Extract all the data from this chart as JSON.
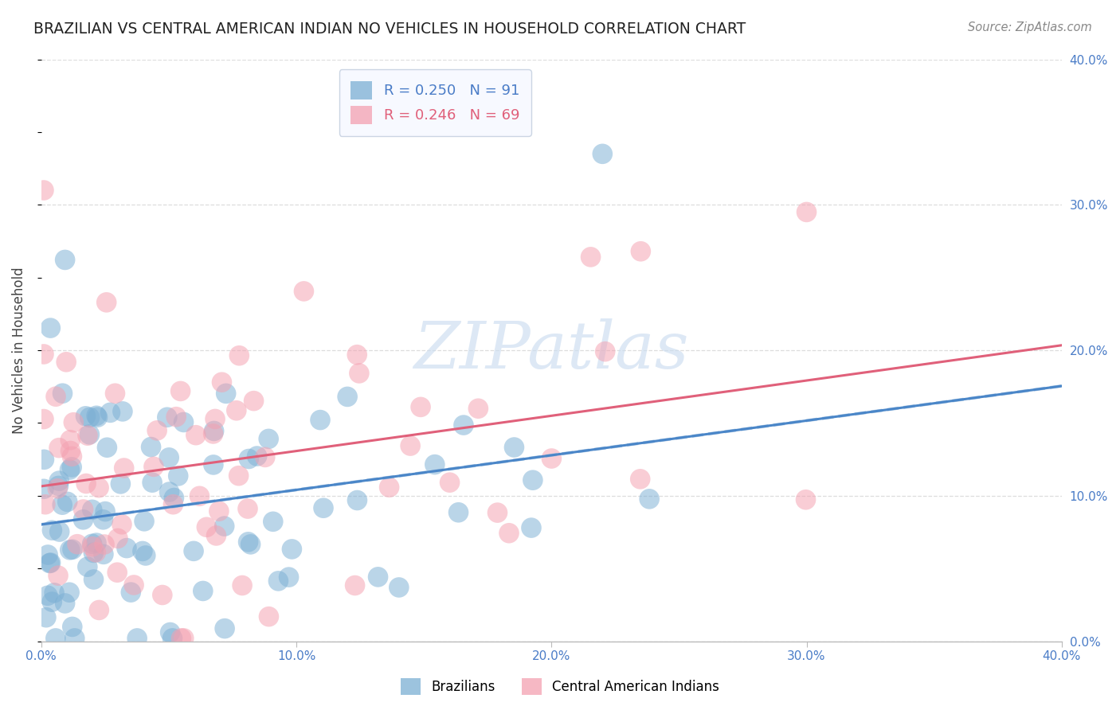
{
  "title": "BRAZILIAN VS CENTRAL AMERICAN INDIAN NO VEHICLES IN HOUSEHOLD CORRELATION CHART",
  "source": "Source: ZipAtlas.com",
  "ylabel": "No Vehicles in Household",
  "xlim": [
    0.0,
    0.4
  ],
  "ylim": [
    0.0,
    0.4
  ],
  "brazilian_R": 0.25,
  "brazilian_N": 91,
  "central_american_R": 0.246,
  "central_american_N": 69,
  "brazilian_color": "#7bafd4",
  "central_american_color": "#f4a0b0",
  "trend_blue_solid": "#4a86c8",
  "trend_pink_solid": "#e0607a",
  "trend_blue_dashed": "#a0c0e0",
  "background_color": "#ffffff",
  "grid_color": "#dddddd",
  "title_color": "#222222",
  "axis_label_color": "#4a7cc7",
  "watermark_color": "#ccddf0",
  "tick_vals": [
    0.0,
    0.1,
    0.2,
    0.3,
    0.4
  ],
  "tick_labels": [
    "0.0%",
    "10.0%",
    "20.0%",
    "30.0%",
    "40.0%"
  ],
  "seed": 42
}
